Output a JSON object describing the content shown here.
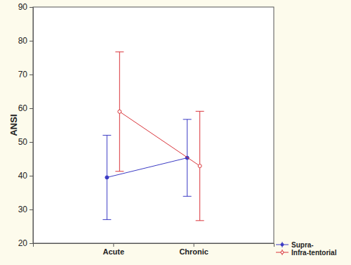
{
  "chart_data": {
    "type": "line",
    "y_label": "ANSI",
    "categories": [
      "Acute",
      "Chronic"
    ],
    "series": [
      {
        "name": "Supra-",
        "color": "#3b3bc4",
        "marker": "circle",
        "values": [
          39.5,
          45.3
        ],
        "errors": [
          12.5,
          11.4
        ]
      },
      {
        "name": "Infra-tentorial",
        "color": "#d9343a",
        "marker": "circle",
        "values": [
          59,
          42.9
        ],
        "errors": [
          17.7,
          16.2
        ]
      }
    ],
    "ylim": [
      20,
      90
    ],
    "yticks": [
      20,
      30,
      40,
      50,
      60,
      70,
      80,
      90
    ],
    "grid": false,
    "legend": "bottom-right"
  }
}
